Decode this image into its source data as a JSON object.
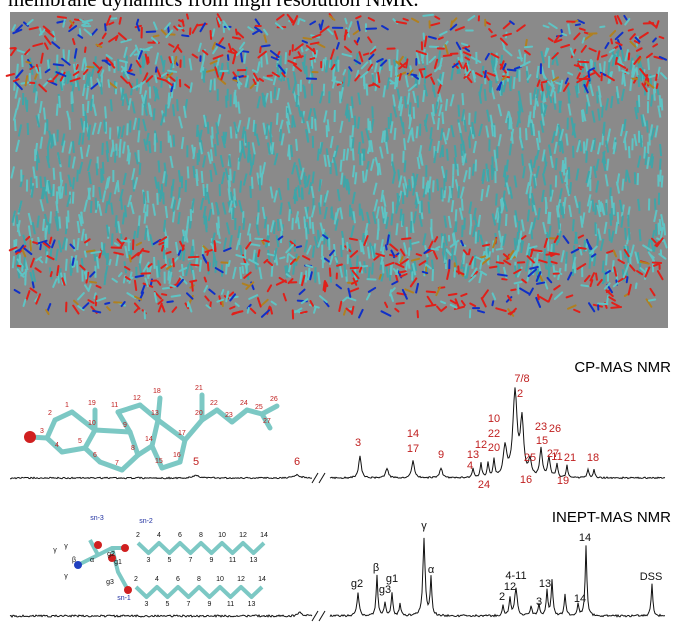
{
  "caption": "membrane dynamics from high resolution NMR.",
  "cholesterol": {
    "labels": [
      "1",
      "2",
      "3",
      "4",
      "5",
      "6",
      "7",
      "8",
      "9",
      "10",
      "11",
      "12",
      "13",
      "14",
      "15",
      "16",
      "17",
      "18",
      "19",
      "20",
      "21",
      "22",
      "23",
      "24",
      "25",
      "26",
      "27"
    ]
  },
  "cp_mas": {
    "title": "CP-MAS NMR",
    "peak_labels": [
      "5",
      "6",
      "3",
      "14",
      "17",
      "9",
      "13",
      "4",
      "12",
      "24",
      "10",
      "22",
      "20",
      "7/8",
      "2",
      "23",
      "26",
      "15",
      "27",
      "25",
      "16",
      "11",
      "21",
      "19",
      "18"
    ]
  },
  "lipid": {
    "labels": [
      "sn-3",
      "sn-2",
      "sn-1",
      "γ",
      "γ",
      "γ",
      "β",
      "α",
      "g1",
      "g2",
      "g3"
    ],
    "sn2_chain": [
      "2",
      "3",
      "4",
      "5",
      "6",
      "7",
      "8",
      "9",
      "10",
      "11",
      "12",
      "13",
      "14"
    ],
    "sn1_chain": [
      "2",
      "3",
      "4",
      "5",
      "6",
      "7",
      "8",
      "9",
      "10",
      "11",
      "12",
      "13",
      "14"
    ]
  },
  "inept_mas": {
    "title": "INEPT-MAS NMR",
    "peak_labels": [
      "γ",
      "g2",
      "β",
      "g3",
      "g1",
      "α",
      "2",
      "12",
      "4-11",
      "3",
      "13",
      "14",
      "14",
      "DSS"
    ]
  }
}
